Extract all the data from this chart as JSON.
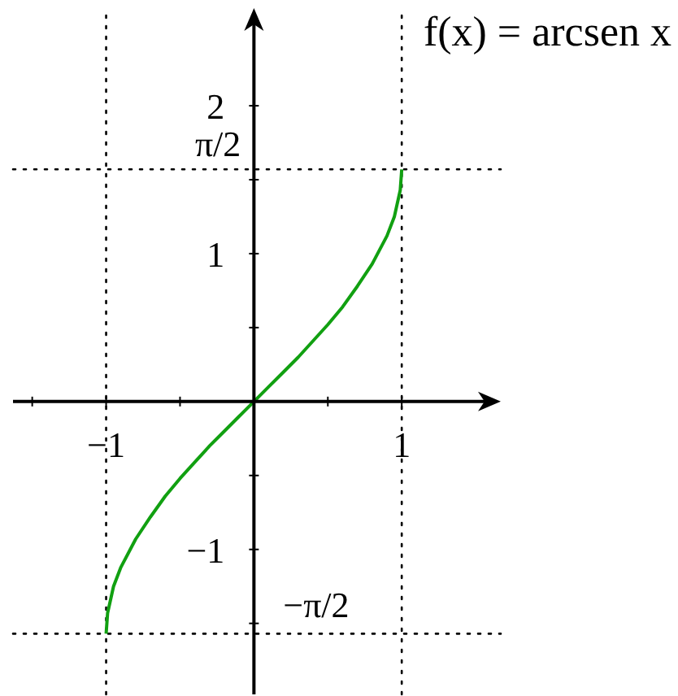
{
  "chart_data": {
    "type": "line",
    "title": "f(x) = arcsen x",
    "x": [
      -1,
      -0.99,
      -0.95,
      -0.9,
      -0.8,
      -0.7,
      -0.6,
      -0.5,
      -0.4,
      -0.3,
      -0.2,
      -0.1,
      0,
      0.1,
      0.2,
      0.3,
      0.4,
      0.5,
      0.6,
      0.7,
      0.8,
      0.9,
      0.95,
      0.99,
      1
    ],
    "series": [
      {
        "color": "#11a011",
        "values": [
          -1.57,
          -1.43,
          -1.25,
          -1.12,
          -0.93,
          -0.78,
          -0.64,
          -0.52,
          -0.41,
          -0.3,
          -0.2,
          -0.1,
          0,
          0.1,
          0.2,
          0.3,
          0.41,
          0.52,
          0.64,
          0.78,
          0.93,
          1.12,
          1.25,
          1.43,
          1.57
        ]
      }
    ],
    "xlim": [
      -1.63,
      1.67
    ],
    "ylim": [
      -1.98,
      2.66
    ],
    "xticks": [
      {
        "value": -1.5,
        "label": null
      },
      {
        "value": -1,
        "label": "−1"
      },
      {
        "value": -0.5,
        "label": null
      },
      {
        "value": 0.5,
        "label": null
      },
      1
    ],
    "yticks": [
      {
        "value": -1.5,
        "label": null
      },
      {
        "value": -1,
        "label": "−1"
      },
      {
        "value": -0.5,
        "label": null
      },
      {
        "value": 0.5,
        "label": null
      },
      1,
      {
        "value": 1.5,
        "label": null
      },
      2
    ],
    "ref_lines": [
      {
        "axis": "x",
        "value": -1,
        "line_style": "dotted"
      },
      {
        "axis": "x",
        "value": 1,
        "line_style": "dotted"
      },
      {
        "axis": "y",
        "value": 1.57,
        "label": "π/2",
        "line_style": "dotted"
      },
      {
        "axis": "y",
        "value": -1.57,
        "label": "−π/2",
        "line_style": "dotted"
      }
    ],
    "marker": "none",
    "line_style": "solid"
  }
}
